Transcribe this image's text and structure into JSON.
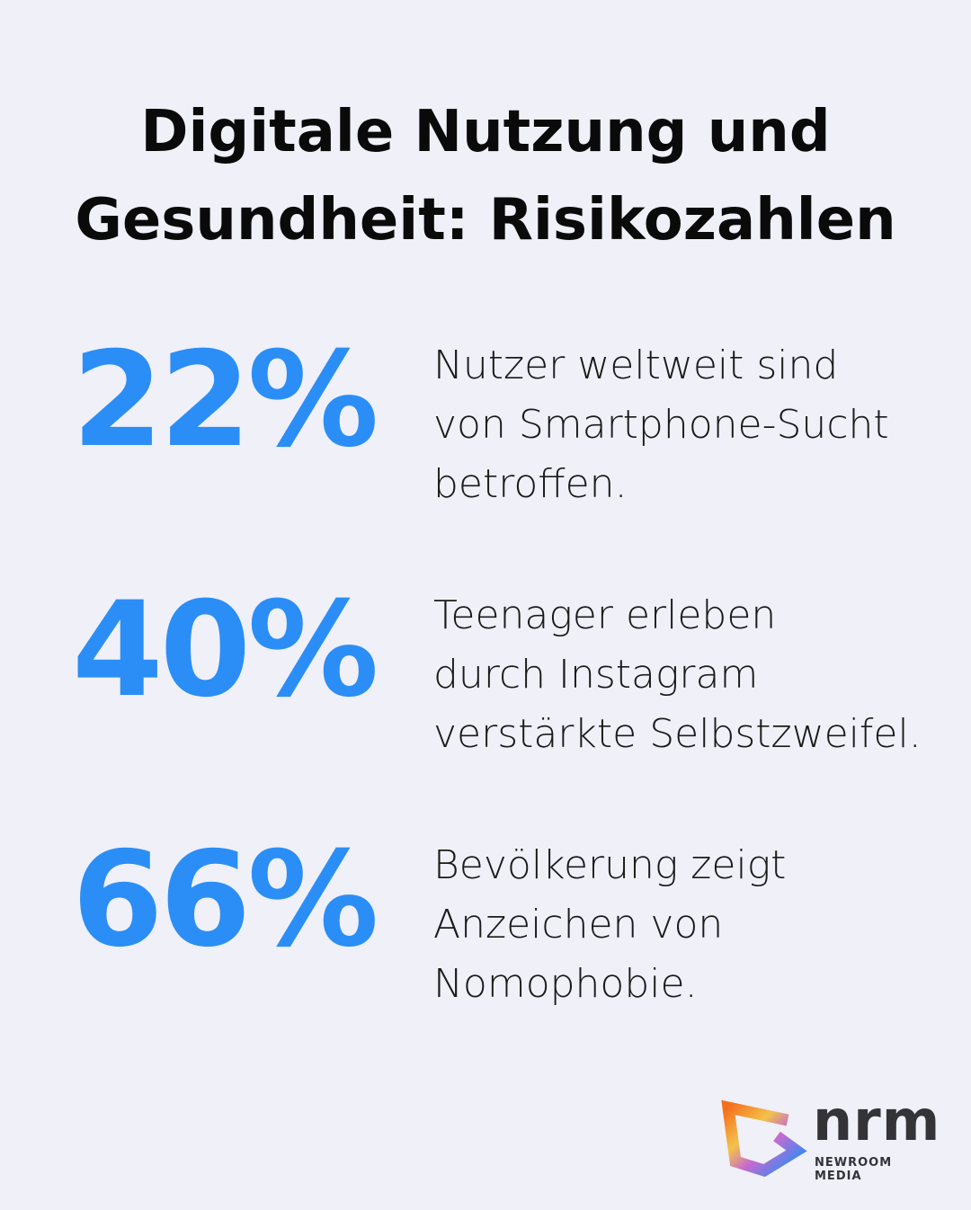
{
  "title": {
    "line1": "Digitale Nutzung und",
    "line2": "Gesundheit: Risikozahlen"
  },
  "stats": [
    {
      "value": "22%",
      "lines": [
        "Nutzer weltweit sind",
        "von Smartphone-Sucht",
        "betroffen."
      ]
    },
    {
      "value": "40%",
      "lines": [
        "Teenager erleben",
        "durch Instagram",
        "verstärkte Selbstzweifel."
      ]
    },
    {
      "value": "66%",
      "lines": [
        "Bevölkerung zeigt",
        "Anzeichen von",
        "Nomophobie."
      ]
    }
  ],
  "logo": {
    "word": "nrm",
    "subtitle": "NEWROOM MEDIA"
  },
  "colors": {
    "accent": "#2b8ef6",
    "background": "#f0f0f9",
    "text": "#1a1a1a"
  }
}
